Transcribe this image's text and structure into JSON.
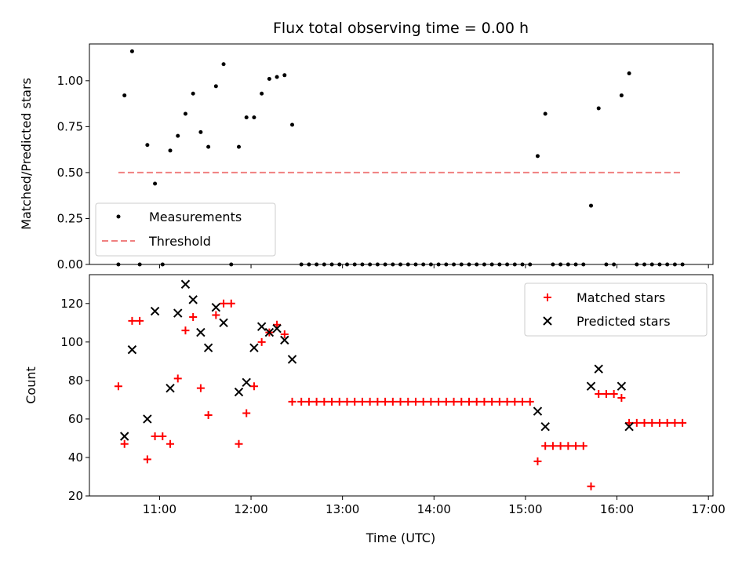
{
  "title": "Flux total observing time = 0.00 h",
  "colors": {
    "measurement": "#000000",
    "threshold": "#f08080",
    "matched": "#ff0000",
    "predicted": "#000000"
  },
  "chart_data": [
    {
      "type": "scatter",
      "ylabel": "Matched/Predicted stars",
      "xlabel": "",
      "xlim": [
        "10:14",
        "17:03"
      ],
      "ylim": [
        0,
        1.2
      ],
      "yticks": [
        0.0,
        0.25,
        0.5,
        0.75,
        1.0
      ],
      "ytick_labels": [
        "0.00",
        "0.25",
        "0.50",
        "0.75",
        "1.00"
      ],
      "grid": false,
      "legend_position": "lower-left",
      "series": [
        {
          "name": "Measurements",
          "marker": "dot",
          "x": [
            "10:33",
            "10:37",
            "10:42",
            "10:47",
            "10:52",
            "10:57",
            "11:02",
            "11:07",
            "11:12",
            "11:17",
            "11:22",
            "11:27",
            "11:32",
            "11:37",
            "11:42",
            "11:47",
            "11:52",
            "11:57",
            "12:02",
            "12:07",
            "12:12",
            "12:17",
            "12:22",
            "12:27",
            "12:33",
            "12:38",
            "12:43",
            "12:48",
            "12:53",
            "12:58",
            "13:03",
            "13:08",
            "13:13",
            "13:18",
            "13:23",
            "13:28",
            "13:33",
            "13:38",
            "13:43",
            "13:48",
            "13:53",
            "13:58",
            "14:03",
            "14:08",
            "14:13",
            "14:18",
            "14:23",
            "14:28",
            "14:33",
            "14:38",
            "14:43",
            "14:48",
            "14:53",
            "14:58",
            "15:03",
            "15:08",
            "15:13",
            "15:18",
            "15:23",
            "15:28",
            "15:33",
            "15:38",
            "15:43",
            "15:48",
            "15:53",
            "15:58",
            "16:03",
            "16:08",
            "16:13",
            "16:18",
            "16:23",
            "16:28",
            "16:33",
            "16:38",
            "16:43"
          ],
          "y": [
            0.0,
            0.92,
            1.16,
            0.0,
            0.65,
            0.44,
            0.0,
            0.62,
            0.7,
            0.82,
            0.93,
            0.72,
            0.64,
            0.97,
            1.09,
            0.0,
            0.64,
            0.8,
            0.8,
            0.93,
            1.01,
            1.02,
            1.03,
            0.76,
            0.0,
            0.0,
            0.0,
            0.0,
            0.0,
            0.0,
            0.0,
            0.0,
            0.0,
            0.0,
            0.0,
            0.0,
            0.0,
            0.0,
            0.0,
            0.0,
            0.0,
            0.0,
            0.0,
            0.0,
            0.0,
            0.0,
            0.0,
            0.0,
            0.0,
            0.0,
            0.0,
            0.0,
            0.0,
            0.0,
            0.0,
            0.59,
            0.82,
            0.0,
            0.0,
            0.0,
            0.0,
            0.0,
            0.32,
            0.85,
            0.0,
            0.0,
            0.92,
            1.04,
            0.0,
            0.0,
            0.0,
            0.0,
            0.0,
            0.0,
            0.0
          ]
        },
        {
          "name": "Threshold",
          "style": "dashed",
          "x": [
            "10:33",
            "16:43"
          ],
          "y": [
            0.5,
            0.5
          ]
        }
      ]
    },
    {
      "type": "scatter",
      "ylabel": "Count",
      "xlabel": "Time (UTC)",
      "xlim": [
        "10:14",
        "17:03"
      ],
      "ylim": [
        20,
        135
      ],
      "yticks": [
        20,
        40,
        60,
        80,
        100,
        120
      ],
      "ytick_labels": [
        "20",
        "40",
        "60",
        "80",
        "100",
        "120"
      ],
      "xticks": [
        "11:00",
        "12:00",
        "13:00",
        "14:00",
        "15:00",
        "16:00",
        "17:00"
      ],
      "xtick_labels": [
        "11:00",
        "12:00",
        "13:00",
        "14:00",
        "15:00",
        "16:00",
        "17:00"
      ],
      "grid": false,
      "legend_position": "upper-right",
      "series": [
        {
          "name": "Matched stars",
          "marker": "plus",
          "x": [
            "10:33",
            "10:37",
            "10:42",
            "10:47",
            "10:52",
            "10:57",
            "11:02",
            "11:07",
            "11:12",
            "11:17",
            "11:22",
            "11:27",
            "11:32",
            "11:37",
            "11:42",
            "11:47",
            "11:52",
            "11:57",
            "12:02",
            "12:07",
            "12:12",
            "12:17",
            "12:22",
            "12:27",
            "12:33",
            "12:38",
            "12:43",
            "12:48",
            "12:53",
            "12:58",
            "13:03",
            "13:08",
            "13:13",
            "13:18",
            "13:23",
            "13:28",
            "13:33",
            "13:38",
            "13:43",
            "13:48",
            "13:53",
            "13:58",
            "14:03",
            "14:08",
            "14:13",
            "14:18",
            "14:23",
            "14:28",
            "14:33",
            "14:38",
            "14:43",
            "14:48",
            "14:53",
            "14:58",
            "15:03",
            "15:08",
            "15:13",
            "15:18",
            "15:23",
            "15:28",
            "15:33",
            "15:38",
            "15:43",
            "15:48",
            "15:53",
            "15:58",
            "16:03",
            "16:08",
            "16:13",
            "16:18",
            "16:23",
            "16:28",
            "16:33",
            "16:38",
            "16:43"
          ],
          "y": [
            77,
            47,
            111,
            111,
            39,
            51,
            51,
            47,
            81,
            106,
            113,
            76,
            62,
            114,
            120,
            120,
            47,
            63,
            77,
            100,
            105,
            109,
            104,
            69,
            69,
            69,
            69,
            69,
            69,
            69,
            69,
            69,
            69,
            69,
            69,
            69,
            69,
            69,
            69,
            69,
            69,
            69,
            69,
            69,
            69,
            69,
            69,
            69,
            69,
            69,
            69,
            69,
            69,
            69,
            69,
            38,
            46,
            46,
            46,
            46,
            46,
            46,
            25,
            73,
            73,
            73,
            71,
            58,
            58,
            58,
            58,
            58,
            58,
            58,
            58
          ]
        },
        {
          "name": "Predicted stars",
          "marker": "x",
          "x": [
            "10:37",
            "10:42",
            "10:52",
            "10:57",
            "11:07",
            "11:12",
            "11:17",
            "11:22",
            "11:27",
            "11:32",
            "11:37",
            "11:42",
            "11:52",
            "11:57",
            "12:02",
            "12:07",
            "12:12",
            "12:17",
            "12:22",
            "12:27",
            "15:08",
            "15:13",
            "15:43",
            "15:48",
            "16:03",
            "16:08"
          ],
          "y": [
            51,
            96,
            60,
            116,
            76,
            115,
            130,
            122,
            105,
            97,
            118,
            110,
            74,
            79,
            97,
            108,
            105,
            107,
            101,
            91,
            64,
            56,
            77,
            86,
            77,
            56
          ]
        }
      ]
    }
  ]
}
